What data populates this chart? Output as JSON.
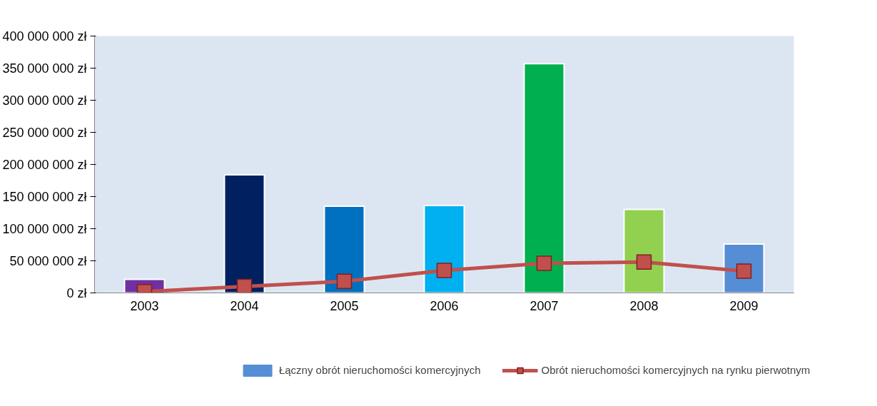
{
  "chart_data": {
    "type": "bar",
    "categories": [
      "2003",
      "2004",
      "2005",
      "2006",
      "2007",
      "2008",
      "2009"
    ],
    "series": [
      {
        "name": "Łączny obrót nieruchomości komercyjnych",
        "color": "#558ed5",
        "colors": [
          "#7030a0",
          "#002060",
          "#0070c0",
          "#00b0f0",
          "#00b050",
          "#92d050",
          "#558ed5"
        ],
        "values": [
          21000000,
          184000000,
          135000000,
          136000000,
          357000000,
          130000000,
          76000000
        ]
      },
      {
        "name": "Obrót nieruchomości komercyjnych na rynku pierwotnym",
        "type": "line",
        "color": "#c0504d",
        "marker": "square",
        "values": [
          2000000,
          10000000,
          18000000,
          35000000,
          46000000,
          48000000,
          34000000
        ]
      }
    ],
    "ylim": [
      0,
      400000000
    ],
    "yticks": [
      {
        "value": 0,
        "label": "0 zł"
      },
      {
        "value": 50000000,
        "label": "50 000 000 zł"
      },
      {
        "value": 100000000,
        "label": "100 000 000 zł"
      },
      {
        "value": 150000000,
        "label": "150 000 000 zł"
      },
      {
        "value": 200000000,
        "label": "200 000 000 zł"
      },
      {
        "value": 250000000,
        "label": "250 000 000 zł"
      },
      {
        "value": 300000000,
        "label": "300 000 000 zł"
      },
      {
        "value": 350000000,
        "label": "350 000 000 zł"
      },
      {
        "value": 400000000,
        "label": "400 000 000 zł"
      }
    ],
    "grid": false,
    "legend": "bottom"
  }
}
